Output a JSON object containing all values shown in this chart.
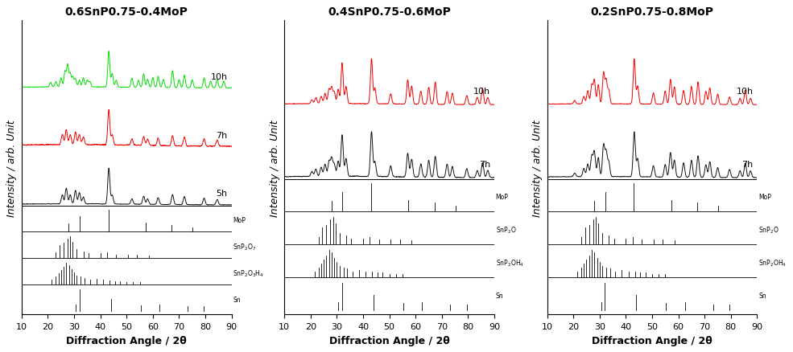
{
  "titles": [
    "0.6SnP0.75-0.4MoP",
    "0.4SnP0.75-0.6MoP",
    "0.2SnP0.75-0.8MoP"
  ],
  "xlabel": "Diffraction Angle / 2θ",
  "ylabel": "Intensity / arb. Unit",
  "xlim": [
    10,
    90
  ],
  "xticks": [
    10,
    20,
    30,
    40,
    50,
    60,
    70,
    80,
    90
  ],
  "panel1_ref_labels": [
    "MoP",
    "SnP$_2$O$_7$",
    "SnP$_2$O$_3$H$_4$",
    "Sn"
  ],
  "panel2_ref_labels": [
    "MoP",
    "SnP$_2$O$_2$",
    "SnP$_2$O$_4$H$_4$",
    "Sn"
  ],
  "panel3_ref_labels": [
    "MoP",
    "SnP$_2$O$_2$",
    "SnP$_2$O$_4$H$_4$",
    "Sn"
  ],
  "mop_ref_x": [
    27.9,
    32.1,
    43.1,
    57.3,
    67.2,
    75.2
  ],
  "mop_ref_h": [
    0.35,
    0.7,
    1.0,
    0.4,
    0.3,
    0.2
  ],
  "snp2o7_ref_x": [
    23.0,
    24.5,
    26.0,
    27.5,
    28.5,
    29.5,
    31.0,
    33.5,
    35.5,
    40.0,
    42.5,
    46.0,
    50.5,
    54.0,
    58.5
  ],
  "snp2o7_ref_h": [
    0.25,
    0.6,
    0.7,
    0.9,
    1.0,
    0.75,
    0.4,
    0.3,
    0.2,
    0.2,
    0.25,
    0.15,
    0.15,
    0.15,
    0.12
  ],
  "snp2o3h4_ref_x": [
    21.5,
    23.0,
    24.0,
    25.0,
    26.0,
    27.0,
    28.0,
    29.0,
    30.0,
    31.0,
    32.5,
    34.0,
    36.0,
    38.5,
    41.0,
    43.5,
    45.5,
    47.5,
    50.0,
    52.5,
    55.0
  ],
  "snp2o3h4_ref_h": [
    0.2,
    0.35,
    0.5,
    0.65,
    0.8,
    1.0,
    0.9,
    0.7,
    0.55,
    0.4,
    0.35,
    0.3,
    0.2,
    0.25,
    0.2,
    0.18,
    0.15,
    0.15,
    0.12,
    0.12,
    0.1
  ],
  "sn_ref_x": [
    30.6,
    32.0,
    44.0,
    55.3,
    62.5,
    73.2,
    79.5
  ],
  "sn_ref_h": [
    0.3,
    1.0,
    0.55,
    0.25,
    0.3,
    0.2,
    0.2
  ],
  "color_green": "#00dd00",
  "color_red": "#ee0000",
  "color_black": "#111111",
  "p1_5h_peaks": [
    25.5,
    27.0,
    28.5,
    30.5,
    32.0,
    33.5,
    43.2,
    44.5,
    52.0,
    56.5,
    58.0,
    62.0,
    67.5,
    72.0,
    79.5,
    84.5
  ],
  "p1_5h_h": [
    0.2,
    0.35,
    0.2,
    0.3,
    0.25,
    0.15,
    0.8,
    0.2,
    0.12,
    0.18,
    0.12,
    0.15,
    0.22,
    0.18,
    0.15,
    0.12
  ],
  "p1_7h_peaks": [
    25.5,
    27.0,
    28.5,
    30.5,
    32.0,
    33.5,
    43.2,
    44.5,
    52.0,
    56.5,
    58.0,
    62.0,
    67.5,
    72.0,
    79.5,
    84.5
  ],
  "p1_7h_h": [
    0.08,
    0.12,
    0.08,
    0.1,
    0.08,
    0.06,
    0.28,
    0.08,
    0.05,
    0.07,
    0.05,
    0.06,
    0.08,
    0.07,
    0.06,
    0.05
  ],
  "p1_10h_peaks": [
    21.0,
    23.0,
    25.0,
    26.5,
    27.5,
    28.5,
    29.5,
    30.5,
    32.0,
    33.5,
    35.0,
    36.0,
    43.2,
    44.5,
    46.0,
    52.0,
    54.5,
    56.5,
    58.0,
    60.0,
    62.0,
    64.0,
    67.5,
    70.0,
    72.0,
    75.0,
    79.5,
    82.0,
    84.5,
    87.0
  ],
  "p1_10h_h": [
    0.1,
    0.12,
    0.2,
    0.35,
    0.5,
    0.3,
    0.22,
    0.18,
    0.15,
    0.2,
    0.15,
    0.12,
    0.8,
    0.3,
    0.15,
    0.2,
    0.15,
    0.3,
    0.18,
    0.22,
    0.25,
    0.18,
    0.38,
    0.18,
    0.28,
    0.18,
    0.22,
    0.15,
    0.2,
    0.15
  ],
  "p2_7h_peaks": [
    20.5,
    22.0,
    24.0,
    25.5,
    27.0,
    28.0,
    29.0,
    30.5,
    32.0,
    33.5,
    43.2,
    44.5,
    50.5,
    57.0,
    58.5,
    62.0,
    65.0,
    67.5,
    72.0,
    74.0,
    79.5,
    83.5,
    85.5,
    87.5
  ],
  "p2_7h_h": [
    0.08,
    0.12,
    0.15,
    0.2,
    0.25,
    0.3,
    0.2,
    0.25,
    0.7,
    0.3,
    0.75,
    0.25,
    0.18,
    0.4,
    0.3,
    0.22,
    0.28,
    0.35,
    0.22,
    0.18,
    0.15,
    0.12,
    0.25,
    0.12
  ],
  "p2_10h_peaks": [
    20.5,
    22.0,
    24.0,
    25.5,
    27.0,
    28.0,
    29.0,
    30.5,
    32.0,
    33.5,
    43.2,
    44.5,
    50.5,
    57.0,
    58.5,
    62.0,
    65.0,
    67.5,
    72.0,
    74.0,
    79.5,
    83.5,
    85.5,
    87.5
  ],
  "p2_10h_h": [
    0.1,
    0.15,
    0.18,
    0.25,
    0.35,
    0.4,
    0.28,
    0.35,
    1.0,
    0.42,
    1.1,
    0.38,
    0.25,
    0.6,
    0.45,
    0.32,
    0.42,
    0.55,
    0.32,
    0.28,
    0.22,
    0.18,
    0.4,
    0.18
  ],
  "p3_7h_peaks": [
    20.5,
    24.0,
    25.5,
    27.0,
    28.0,
    29.5,
    31.5,
    32.5,
    33.5,
    43.2,
    44.5,
    50.5,
    55.0,
    57.0,
    58.5,
    62.0,
    65.0,
    67.5,
    70.5,
    72.0,
    75.0,
    79.5,
    83.5,
    85.5,
    87.5
  ],
  "p3_7h_h": [
    0.08,
    0.18,
    0.28,
    0.45,
    0.55,
    0.42,
    0.7,
    0.55,
    0.32,
    1.0,
    0.4,
    0.25,
    0.28,
    0.55,
    0.38,
    0.32,
    0.38,
    0.48,
    0.28,
    0.35,
    0.22,
    0.18,
    0.15,
    0.32,
    0.15
  ],
  "p3_10h_peaks": [
    20.5,
    24.0,
    25.5,
    27.0,
    28.0,
    29.5,
    31.5,
    32.5,
    33.5,
    43.2,
    44.5,
    50.5,
    55.0,
    57.0,
    58.5,
    62.0,
    65.0,
    67.5,
    70.5,
    72.0,
    75.0,
    79.5,
    83.5,
    85.5,
    87.5
  ],
  "p3_10h_h": [
    0.1,
    0.22,
    0.38,
    0.55,
    0.68,
    0.55,
    0.9,
    0.68,
    0.4,
    1.3,
    0.52,
    0.32,
    0.38,
    0.72,
    0.5,
    0.4,
    0.52,
    0.65,
    0.38,
    0.48,
    0.3,
    0.22,
    0.18,
    0.42,
    0.18
  ]
}
